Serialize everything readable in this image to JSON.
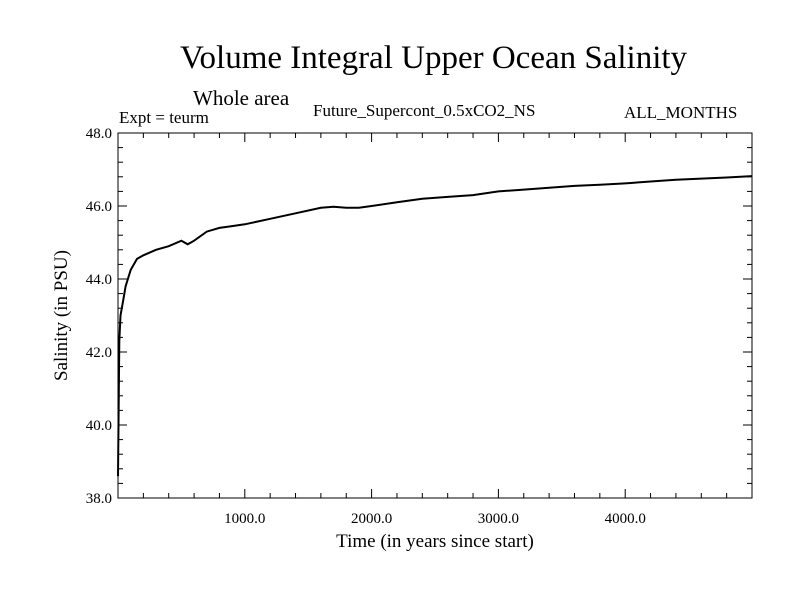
{
  "chart_data": {
    "type": "line",
    "title": "Volume Integral Upper Ocean Salinity",
    "subtitle": "Whole area",
    "expt_label": "Expt = teurm",
    "experiment": "Future_Supercont_0.5xCO2_NS",
    "months": "ALL_MONTHS",
    "xlabel": "Time (in years since start)",
    "ylabel": "Salinity (in PSU)",
    "xlim": [
      0,
      5000
    ],
    "ylim": [
      38.0,
      48.0
    ],
    "xticks": [
      1000,
      2000,
      3000,
      4000
    ],
    "xtick_labels": [
      "1000.0",
      "2000.0",
      "3000.0",
      "4000.0"
    ],
    "yticks": [
      38,
      40,
      42,
      44,
      46,
      48
    ],
    "ytick_labels": [
      "38.0",
      "40.0",
      "42.0",
      "44.0",
      "46.0",
      "48.0"
    ],
    "grid": false,
    "line_color": "#000000",
    "series": [
      {
        "x": [
          0,
          10,
          20,
          40,
          60,
          100,
          150,
          200,
          300,
          400,
          500,
          550,
          600,
          700,
          800,
          900,
          1000,
          1200,
          1400,
          1600,
          1700,
          1800,
          1900,
          2000,
          2200,
          2400,
          2600,
          2800,
          3000,
          3200,
          3400,
          3600,
          3800,
          4000,
          4200,
          4400,
          4600,
          4800,
          5000
        ],
        "y": [
          38.6,
          42.3,
          43.0,
          43.4,
          43.8,
          44.25,
          44.55,
          44.65,
          44.8,
          44.9,
          45.05,
          44.95,
          45.05,
          45.3,
          45.4,
          45.45,
          45.5,
          45.65,
          45.8,
          45.95,
          45.98,
          45.95,
          45.95,
          46.0,
          46.1,
          46.2,
          46.25,
          46.3,
          46.4,
          46.45,
          46.5,
          46.55,
          46.58,
          46.62,
          46.67,
          46.72,
          46.75,
          46.78,
          46.82
        ]
      }
    ]
  }
}
